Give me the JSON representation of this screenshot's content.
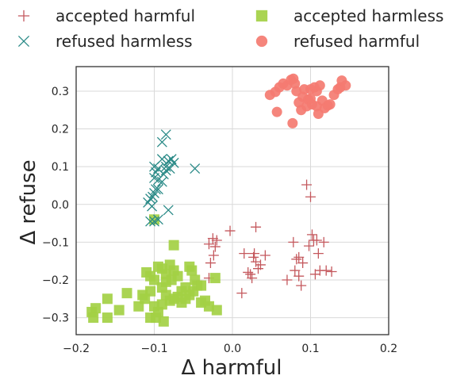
{
  "chart_data": {
    "type": "scatter",
    "xlabel": "Δ harmful",
    "ylabel": "Δ refuse",
    "xlim": [
      -0.2,
      0.2
    ],
    "ylim": [
      -0.345,
      0.365
    ],
    "x_ticks": [
      -0.2,
      -0.1,
      0.0,
      0.1,
      0.2
    ],
    "x_tick_labels": [
      "−0.2",
      "−0.1",
      "0.0",
      "0.1",
      "0.2"
    ],
    "y_ticks": [
      -0.3,
      -0.2,
      -0.1,
      0.0,
      0.1,
      0.2,
      0.3
    ],
    "y_tick_labels": [
      "−0.3",
      "−0.2",
      "−0.1",
      "0.0",
      "0.1",
      "0.2",
      "0.3"
    ],
    "grid": true,
    "legend_position": "top, outside plot, two columns",
    "series": [
      {
        "name": "accepted harmful",
        "marker": "plus",
        "color": "#c4585d",
        "points": [
          [
            -0.03,
            -0.105
          ],
          [
            -0.025,
            -0.09
          ],
          [
            -0.022,
            -0.112
          ],
          [
            -0.02,
            -0.095
          ],
          [
            -0.024,
            -0.135
          ],
          [
            -0.028,
            -0.155
          ],
          [
            -0.03,
            -0.195
          ],
          [
            -0.003,
            -0.07
          ],
          [
            0.03,
            -0.06
          ],
          [
            0.012,
            -0.235
          ],
          [
            0.015,
            -0.13
          ],
          [
            0.02,
            -0.18
          ],
          [
            0.023,
            -0.185
          ],
          [
            0.025,
            -0.195
          ],
          [
            0.027,
            -0.14
          ],
          [
            0.028,
            -0.13
          ],
          [
            0.03,
            -0.152
          ],
          [
            0.033,
            -0.17
          ],
          [
            0.036,
            -0.16
          ],
          [
            0.042,
            -0.135
          ],
          [
            0.078,
            -0.1
          ],
          [
            0.082,
            -0.145
          ],
          [
            0.085,
            -0.14
          ],
          [
            0.08,
            -0.175
          ],
          [
            0.085,
            -0.19
          ],
          [
            0.088,
            -0.215
          ],
          [
            0.09,
            -0.155
          ],
          [
            0.095,
            0.052
          ],
          [
            0.1,
            0.02
          ],
          [
            0.098,
            -0.11
          ],
          [
            0.102,
            -0.08
          ],
          [
            0.104,
            -0.095
          ],
          [
            0.106,
            -0.185
          ],
          [
            0.108,
            -0.095
          ],
          [
            0.11,
            -0.13
          ],
          [
            0.112,
            -0.175
          ],
          [
            0.117,
            -0.1
          ],
          [
            0.12,
            -0.175
          ],
          [
            0.127,
            -0.178
          ],
          [
            0.07,
            -0.2
          ]
        ]
      },
      {
        "name": "accepted harmless",
        "marker": "square",
        "color": "#a3d044",
        "points": [
          [
            -0.1,
            -0.04
          ],
          [
            -0.075,
            -0.108
          ],
          [
            -0.095,
            -0.165
          ],
          [
            -0.09,
            -0.17
          ],
          [
            -0.085,
            -0.185
          ],
          [
            -0.08,
            -0.16
          ],
          [
            -0.078,
            -0.2
          ],
          [
            -0.075,
            -0.175
          ],
          [
            -0.07,
            -0.19
          ],
          [
            -0.06,
            -0.22
          ],
          [
            -0.055,
            -0.165
          ],
          [
            -0.052,
            -0.175
          ],
          [
            -0.048,
            -0.2
          ],
          [
            -0.045,
            -0.215
          ],
          [
            -0.05,
            -0.23
          ],
          [
            -0.055,
            -0.24
          ],
          [
            -0.06,
            -0.25
          ],
          [
            -0.065,
            -0.23
          ],
          [
            -0.07,
            -0.245
          ],
          [
            -0.075,
            -0.25
          ],
          [
            -0.08,
            -0.255
          ],
          [
            -0.085,
            -0.24
          ],
          [
            -0.09,
            -0.22
          ],
          [
            -0.1,
            -0.2
          ],
          [
            -0.105,
            -0.19
          ],
          [
            -0.11,
            -0.18
          ],
          [
            -0.105,
            -0.23
          ],
          [
            -0.115,
            -0.24
          ],
          [
            -0.12,
            -0.27
          ],
          [
            -0.112,
            -0.25
          ],
          [
            -0.1,
            -0.27
          ],
          [
            -0.095,
            -0.285
          ],
          [
            -0.105,
            -0.3
          ],
          [
            -0.098,
            -0.3
          ],
          [
            -0.088,
            -0.31
          ],
          [
            -0.135,
            -0.235
          ],
          [
            -0.16,
            -0.25
          ],
          [
            -0.175,
            -0.275
          ],
          [
            -0.18,
            -0.285
          ],
          [
            -0.178,
            -0.3
          ],
          [
            -0.16,
            -0.3
          ],
          [
            -0.145,
            -0.28
          ],
          [
            -0.04,
            -0.215
          ],
          [
            -0.04,
            -0.26
          ],
          [
            -0.035,
            -0.255
          ],
          [
            -0.022,
            -0.195
          ],
          [
            -0.02,
            -0.28
          ],
          [
            -0.03,
            -0.27
          ],
          [
            -0.065,
            -0.26
          ],
          [
            -0.09,
            -0.265
          ],
          [
            -0.085,
            -0.205
          ]
        ]
      },
      {
        "name": "refused harmless",
        "marker": "x",
        "color": "#2a8a87",
        "points": [
          [
            -0.085,
            0.185
          ],
          [
            -0.09,
            0.165
          ],
          [
            -0.09,
            0.12
          ],
          [
            -0.085,
            0.1
          ],
          [
            -0.082,
            0.115
          ],
          [
            -0.078,
            0.12
          ],
          [
            -0.075,
            0.11
          ],
          [
            -0.08,
            0.095
          ],
          [
            -0.085,
            0.09
          ],
          [
            -0.088,
            0.08
          ],
          [
            -0.095,
            0.095
          ],
          [
            -0.098,
            0.085
          ],
          [
            -0.1,
            0.07
          ],
          [
            -0.095,
            0.065
          ],
          [
            -0.098,
            0.04
          ],
          [
            -0.1,
            0.03
          ],
          [
            -0.102,
            0.02
          ],
          [
            -0.105,
            0.015
          ],
          [
            -0.108,
            0.005
          ],
          [
            -0.103,
            -0.005
          ],
          [
            -0.105,
            -0.045
          ],
          [
            -0.1,
            -0.045
          ],
          [
            -0.095,
            -0.04
          ],
          [
            -0.082,
            -0.015
          ],
          [
            -0.048,
            0.095
          ],
          [
            -0.095,
            0.04
          ],
          [
            -0.09,
            0.06
          ],
          [
            -0.1,
            0.1
          ]
        ]
      },
      {
        "name": "refused harmful",
        "marker": "circle",
        "color": "#f47b71",
        "points": [
          [
            0.048,
            0.29
          ],
          [
            0.055,
            0.298
          ],
          [
            0.057,
            0.245
          ],
          [
            0.06,
            0.31
          ],
          [
            0.065,
            0.32
          ],
          [
            0.07,
            0.315
          ],
          [
            0.075,
            0.33
          ],
          [
            0.078,
            0.333
          ],
          [
            0.08,
            0.32
          ],
          [
            0.077,
            0.215
          ],
          [
            0.082,
            0.3
          ],
          [
            0.085,
            0.27
          ],
          [
            0.088,
            0.25
          ],
          [
            0.09,
            0.285
          ],
          [
            0.092,
            0.305
          ],
          [
            0.095,
            0.26
          ],
          [
            0.097,
            0.278
          ],
          [
            0.1,
            0.305
          ],
          [
            0.102,
            0.265
          ],
          [
            0.105,
            0.31
          ],
          [
            0.108,
            0.3
          ],
          [
            0.11,
            0.24
          ],
          [
            0.112,
            0.315
          ],
          [
            0.115,
            0.275
          ],
          [
            0.118,
            0.255
          ],
          [
            0.122,
            0.262
          ],
          [
            0.125,
            0.265
          ],
          [
            0.13,
            0.29
          ],
          [
            0.138,
            0.31
          ],
          [
            0.14,
            0.328
          ],
          [
            0.145,
            0.315
          ],
          [
            0.135,
            0.305
          ],
          [
            0.1,
            0.28
          ],
          [
            0.108,
            0.26
          ]
        ]
      }
    ]
  }
}
